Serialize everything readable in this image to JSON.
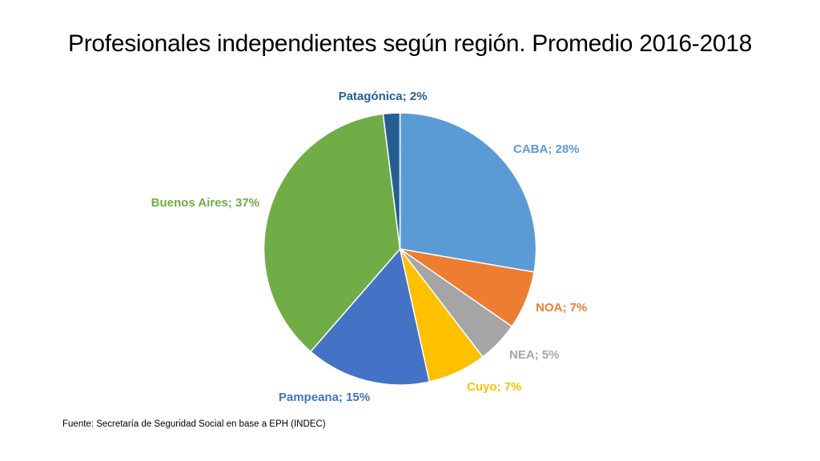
{
  "title": "Profesionales independientes según región. Promedio 2016-2018",
  "source": "Fuente: Secretaría de Seguridad Social en base a EPH (INDEC)",
  "chart_data": {
    "type": "pie",
    "title": "Profesionales independientes según región. Promedio 2016-2018",
    "unit": "%",
    "slices": [
      {
        "name": "CABA",
        "value": 28,
        "label": "CABA; 28%",
        "color": "#5B9BD5"
      },
      {
        "name": "NOA",
        "value": 7,
        "label": "NOA; 7%",
        "color": "#ED7D31"
      },
      {
        "name": "NEA",
        "value": 5,
        "label": "NEA; 5%",
        "color": "#A5A5A5"
      },
      {
        "name": "Cuyo",
        "value": 7,
        "label": "Cuyo; 7%",
        "color": "#FFC000"
      },
      {
        "name": "Pampeana",
        "value": 15,
        "label": "Pampeana; 15%",
        "color": "#4472C4"
      },
      {
        "name": "Buenos Aires",
        "value": 37,
        "label": "Buenos Aires; 37%",
        "color": "#70AD47"
      },
      {
        "name": "Patagónica",
        "value": 2,
        "label": "Patagónica; 2%",
        "color": "#255E91"
      }
    ],
    "start": "12 o'clock",
    "direction": "clockwise",
    "legend": "none",
    "data_labels": "outside"
  }
}
